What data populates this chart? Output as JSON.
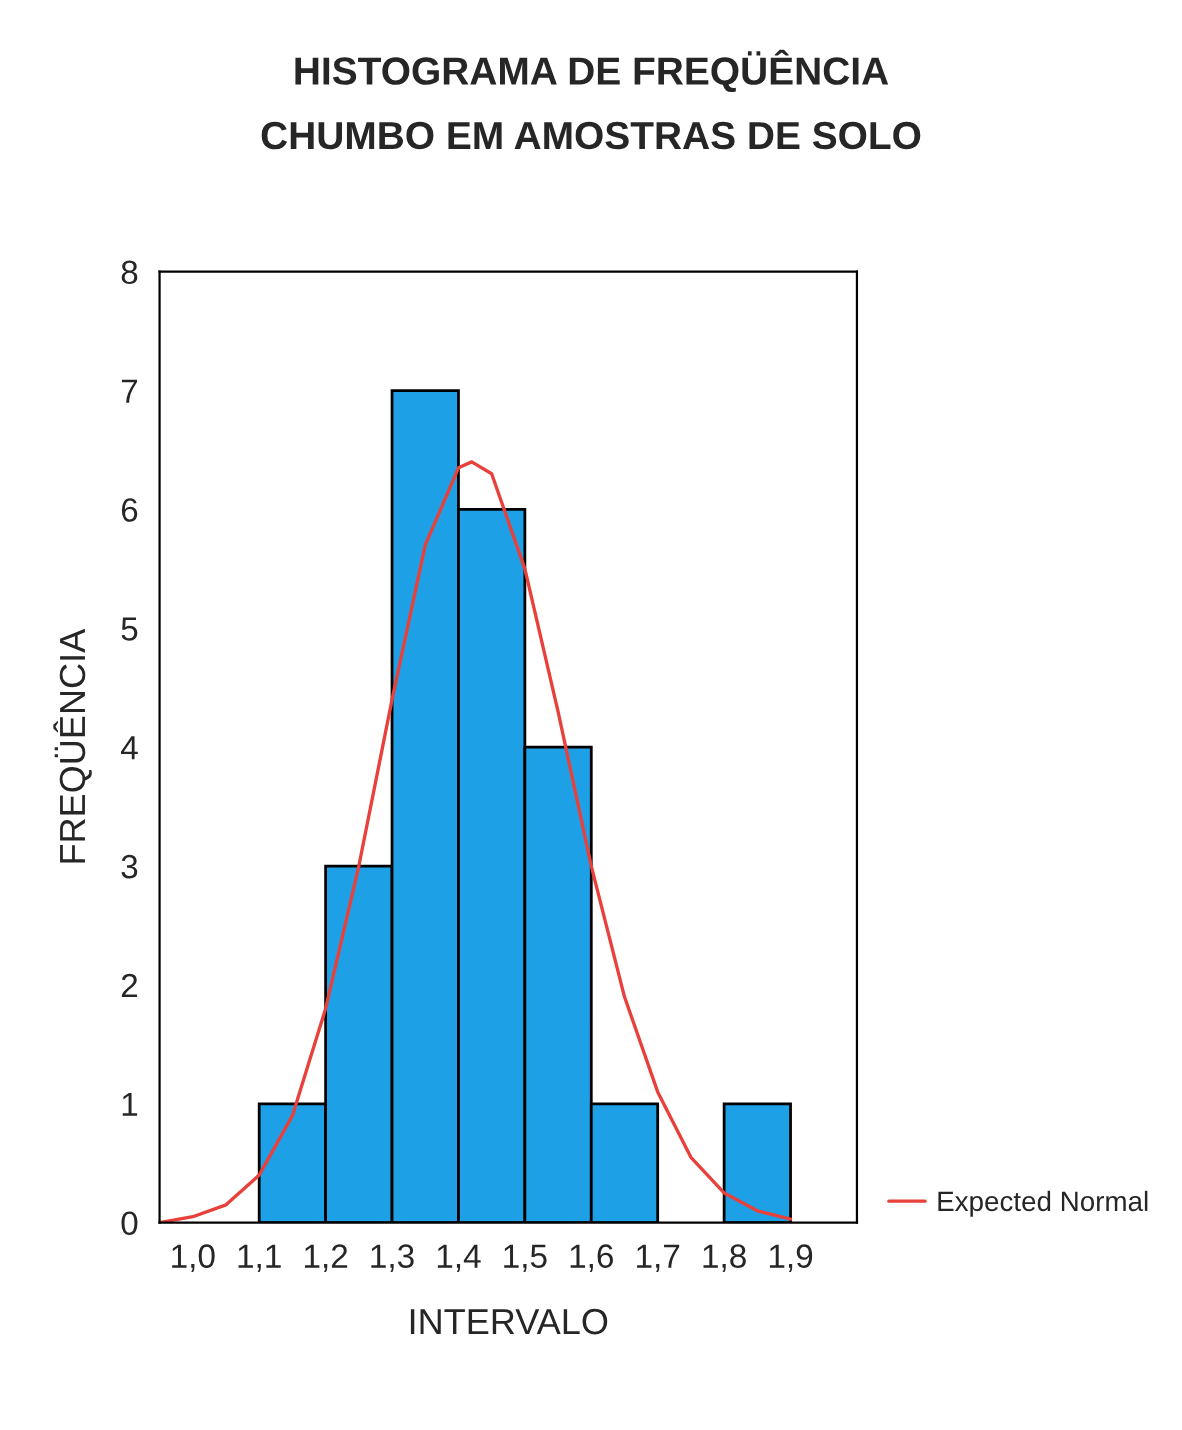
{
  "chart_data": {
    "type": "histogram",
    "title": "HISTOGRAMA DE FREQÜÊNCIA\nCHUMBO EM AMOSTRAS DE SOLO",
    "xlabel": "INTERVALO",
    "ylabel": "FREQÜÊNCIA",
    "bins": [
      1.1,
      1.2,
      1.3,
      1.4,
      1.5,
      1.6,
      1.7,
      1.8,
      1.9
    ],
    "series": [
      {
        "color": "#1ea0e6",
        "values": [
          1,
          3,
          7,
          6,
          4,
          1,
          0,
          1
        ]
      },
      {
        "type": "line",
        "name": "Expected Normal",
        "color": "#e8403a",
        "x": [
          0.95,
          1.0,
          1.05,
          1.1,
          1.15,
          1.2,
          1.25,
          1.3,
          1.35,
          1.4,
          1.42,
          1.45,
          1.5,
          1.55,
          1.6,
          1.65,
          1.7,
          1.75,
          1.8,
          1.85,
          1.9
        ],
        "values": [
          0.0,
          0.05,
          0.15,
          0.4,
          0.9,
          1.8,
          3.0,
          4.4,
          5.7,
          6.35,
          6.4,
          6.3,
          5.5,
          4.3,
          3.0,
          1.9,
          1.1,
          0.55,
          0.25,
          0.1,
          0.03
        ]
      }
    ],
    "xlim": [
      0.95,
      2.0
    ],
    "ylim": [
      0,
      8
    ],
    "xticks": [
      {
        "value": 1.0,
        "label": "1,0"
      },
      {
        "value": 1.1,
        "label": "1,1"
      },
      {
        "value": 1.2,
        "label": "1,2"
      },
      {
        "value": 1.3,
        "label": "1,3"
      },
      {
        "value": 1.4,
        "label": "1,4"
      },
      {
        "value": 1.5,
        "label": "1,5"
      },
      {
        "value": 1.6,
        "label": "1,6"
      },
      {
        "value": 1.7,
        "label": "1,7"
      },
      {
        "value": 1.8,
        "label": "1,8"
      },
      {
        "value": 1.9,
        "label": "1,9"
      }
    ],
    "yticks": [
      0,
      1,
      2,
      3,
      4,
      5,
      6,
      7,
      8
    ],
    "grid": false,
    "legend": "right"
  }
}
